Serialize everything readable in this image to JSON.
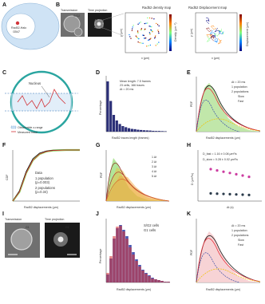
{
  "panels": {
    "A": {
      "label": "A",
      "cell_text_1": "Rad52-Halo",
      "cell_text_2": "/3547"
    },
    "B": {
      "label": "B",
      "transmission": "Transmission",
      "time_projection": "Time projection",
      "sg2": "S/G2",
      "density_title": "Rad52 density map",
      "displacement_title": "Rad52 Displacement map",
      "x_label": "x (μm)",
      "y_label": "y (μm)",
      "density_cbar": "Density (μm⁻²)",
      "displacement_cbar": "Displacement (μm)"
    },
    "C": {
      "label": "C",
      "nucleus": "Nucleus",
      "legend_1": "Observable z-range",
      "legend_2": "Measured trace"
    },
    "D": {
      "label": "D",
      "stats_1": "Mean length: 7.5 frames",
      "stats_2": "23 cells, 166 traces",
      "stats_3": "Δt = 20 ms",
      "xlabel": "Rad52 traces length (frames)",
      "ylabel": "Percentage"
    },
    "E": {
      "label": "E",
      "dt": "Δt = 20 ms",
      "l1": "1 population",
      "l2": "2 populations",
      "l3": "Slow",
      "l4": "Fast",
      "xlabel": "Rad52 displacements (μm)",
      "ylabel": "PDF"
    },
    "F": {
      "label": "F",
      "l1": "Data",
      "l2": "1 population",
      "l2b": "(p=0.003)",
      "l3": "2 populations",
      "l3b": "(p=0.34)",
      "xlabel": "Rad52 displacements (μm)",
      "ylabel": "CDF"
    },
    "G": {
      "label": "G",
      "dts": [
        "1 Δt",
        "2 Δt",
        "3 Δt",
        "4 Δt",
        "5 Δt"
      ],
      "xlabel": "Rad52 displacements (μm)",
      "ylabel": "PDF"
    },
    "H": {
      "label": "H",
      "fast": "D_fast = 1.16 ± 0.08 μm²/s",
      "slow": "D_slow = 0.28 ± 0.02 μm²/s",
      "xlabel": "Δt (s)",
      "ylabel": "D (μm²/s)"
    },
    "I": {
      "label": "I",
      "transmission": "Transmission",
      "time_projection": "Time projection",
      "g1": "G1"
    },
    "J": {
      "label": "J",
      "l1": "S/G2 cells",
      "l2": "G1 cells",
      "xlabel": "Rad52 displacements (μm)",
      "ylabel": "Percentage"
    },
    "K": {
      "label": "K",
      "dt": "Δt = 20 ms",
      "l1": "1 population",
      "l2": "2 populations",
      "l3": "Slow",
      "l4": "Fast",
      "xlabel": "Rad52 displacements (μm)",
      "ylabel": "PDF"
    }
  },
  "colors": {
    "data_green": "#7ed957",
    "one_pop": "#111111",
    "two_pop": "#e8323c",
    "slow": "#3c4fa8",
    "fast": "#f2c200",
    "navy": "#2b2f77",
    "magenta": "#cc3ba0",
    "sg2": "#2c3aa3",
    "g1": "#d2353a"
  },
  "chart_data": [
    {
      "panel": "D",
      "type": "bar",
      "title": "",
      "xlabel": "Rad52 traces length (frames)",
      "ylabel": "Percentage",
      "xlim": [
        0,
        100
      ],
      "ylim": [
        0,
        40
      ],
      "values": [
        36,
        22,
        12,
        8,
        5.5,
        4,
        3.2,
        2.5,
        2,
        1.8,
        1.4,
        1.2,
        1,
        0.9,
        0.8,
        0.6,
        0.5,
        0.5,
        0.4,
        0.3
      ]
    },
    {
      "panel": "F",
      "type": "line",
      "title": "",
      "xlabel": "Rad52 displacements (μm)",
      "ylabel": "CDF",
      "xlim": [
        0,
        0.5
      ],
      "ylim": [
        0,
        1
      ],
      "series": [
        {
          "name": "Data",
          "x": [
            0,
            0.05,
            0.1,
            0.15,
            0.2,
            0.25,
            0.3,
            0.4,
            0.5
          ],
          "y": [
            0,
            0.18,
            0.55,
            0.8,
            0.92,
            0.97,
            0.99,
            1,
            1
          ]
        },
        {
          "name": "1 population",
          "x": [
            0,
            0.05,
            0.1,
            0.15,
            0.2,
            0.25,
            0.3,
            0.4,
            0.5
          ],
          "y": [
            0,
            0.2,
            0.58,
            0.83,
            0.94,
            0.98,
            0.995,
            1,
            1
          ]
        },
        {
          "name": "2 populations",
          "x": [
            0,
            0.05,
            0.1,
            0.15,
            0.2,
            0.25,
            0.3,
            0.4,
            0.5
          ],
          "y": [
            0,
            0.18,
            0.55,
            0.8,
            0.92,
            0.97,
            0.99,
            1,
            1
          ]
        }
      ]
    },
    {
      "panel": "J",
      "type": "bar",
      "title": "",
      "xlabel": "Rad52 displacements (μm)",
      "ylabel": "Percentage",
      "xlim": [
        0,
        0.5
      ],
      "ylim": [
        0,
        8
      ],
      "series": [
        {
          "name": "S/G2 cells",
          "values": [
            1,
            3,
            5.5,
            6.8,
            7.2,
            6.6,
            5.8,
            4.7,
            3.8,
            2.9,
            2.2,
            1.6,
            1.2,
            0.9,
            0.6,
            0.4,
            0.3,
            0.2,
            0.1,
            0.1
          ]
        },
        {
          "name": "G1 cells",
          "values": [
            1.2,
            3.3,
            5.8,
            7,
            7.1,
            6.4,
            5.5,
            4.4,
            3.5,
            2.7,
            2,
            1.5,
            1.1,
            0.8,
            0.5,
            0.4,
            0.3,
            0.2,
            0.1,
            0.1
          ]
        }
      ]
    },
    {
      "panel": "H",
      "type": "scatter",
      "title": "",
      "xlabel": "Δt (s)",
      "ylabel": "D (μm²/s)",
      "xlim": [
        0,
        0.1
      ],
      "ylim": [
        0,
        2
      ],
      "series": [
        {
          "name": "D_fast",
          "x": [
            0.02,
            0.03,
            0.04,
            0.05,
            0.06,
            0.07,
            0.08
          ],
          "y": [
            1.25,
            1.2,
            1.15,
            1.1,
            1.05,
            1.0,
            0.95
          ]
        },
        {
          "name": "D_slow",
          "x": [
            0.02,
            0.03,
            0.04,
            0.05,
            0.06,
            0.07,
            0.08
          ],
          "y": [
            0.3,
            0.29,
            0.28,
            0.27,
            0.26,
            0.25,
            0.24
          ]
        }
      ]
    }
  ]
}
